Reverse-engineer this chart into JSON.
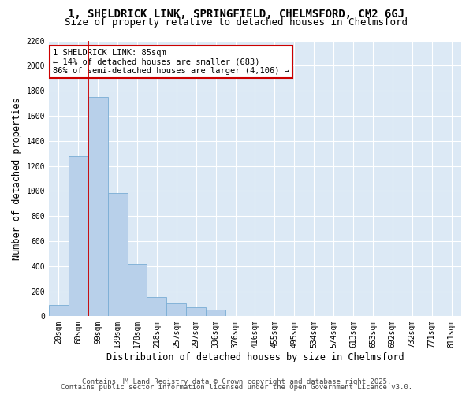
{
  "title_line1": "1, SHELDRICK LINK, SPRINGFIELD, CHELMSFORD, CM2 6GJ",
  "title_line2": "Size of property relative to detached houses in Chelmsford",
  "xlabel": "Distribution of detached houses by size in Chelmsford",
  "ylabel": "Number of detached properties",
  "categories": [
    "20sqm",
    "60sqm",
    "99sqm",
    "139sqm",
    "178sqm",
    "218sqm",
    "257sqm",
    "297sqm",
    "336sqm",
    "376sqm",
    "416sqm",
    "455sqm",
    "495sqm",
    "534sqm",
    "574sqm",
    "613sqm",
    "653sqm",
    "692sqm",
    "732sqm",
    "771sqm",
    "811sqm"
  ],
  "values": [
    90,
    1280,
    1750,
    980,
    420,
    150,
    100,
    70,
    50,
    0,
    0,
    0,
    0,
    0,
    0,
    0,
    0,
    0,
    0,
    0,
    0
  ],
  "bar_color": "#b8d0ea",
  "bar_edge_color": "#7aadd4",
  "background_color": "#dce9f5",
  "grid_color": "#ffffff",
  "vline_color": "#cc0000",
  "annotation_line1": "1 SHELDRICK LINK: 85sqm",
  "annotation_line2": "← 14% of detached houses are smaller (683)",
  "annotation_line3": "86% of semi-detached houses are larger (4,106) →",
  "annotation_box_facecolor": "#ffffff",
  "annotation_box_edgecolor": "#cc0000",
  "ylim": [
    0,
    2200
  ],
  "yticks": [
    0,
    200,
    400,
    600,
    800,
    1000,
    1200,
    1400,
    1600,
    1800,
    2000,
    2200
  ],
  "footer_line1": "Contains HM Land Registry data © Crown copyright and database right 2025.",
  "footer_line2": "Contains public sector information licensed under the Open Government Licence v3.0.",
  "title_fontsize": 10,
  "subtitle_fontsize": 9,
  "axis_label_fontsize": 8.5,
  "tick_fontsize": 7,
  "annotation_fontsize": 7.5,
  "footer_fontsize": 6.5
}
